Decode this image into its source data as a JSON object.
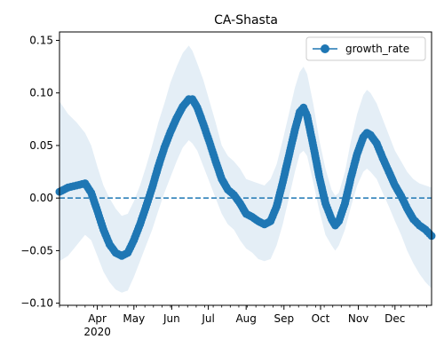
{
  "chart_data": {
    "type": "line",
    "title": "CA-Shasta",
    "xlabel": "",
    "ylabel": "",
    "x_start": "2020-03-01",
    "x_end": "2020-12-31",
    "xlim": [
      "2020-03-01",
      "2020-12-31"
    ],
    "ylim": [
      -0.102,
      0.158
    ],
    "y_ticks": [
      -0.1,
      -0.05,
      0.0,
      0.05,
      0.1,
      0.15
    ],
    "y_tick_labels": [
      "−0.10",
      "−0.05",
      "0.00",
      "0.05",
      "0.10",
      "0.15"
    ],
    "x_ticks": [
      {
        "date": "2020-04-01",
        "label": "Apr"
      },
      {
        "date": "2020-05-01",
        "label": "May"
      },
      {
        "date": "2020-06-01",
        "label": "Jun"
      },
      {
        "date": "2020-07-01",
        "label": "Jul"
      },
      {
        "date": "2020-08-01",
        "label": "Aug"
      },
      {
        "date": "2020-09-01",
        "label": "Sep"
      },
      {
        "date": "2020-10-01",
        "label": "Oct"
      },
      {
        "date": "2020-11-01",
        "label": "Nov"
      },
      {
        "date": "2020-12-01",
        "label": "Dec"
      }
    ],
    "x_year_label": "2020",
    "grid": false,
    "legend_position": "top-right",
    "reference_line": {
      "y": 0,
      "style": "dashed",
      "color": "#1f77b4"
    },
    "series": [
      {
        "name": "growth_rate",
        "color": "#1f77b4",
        "band_color": "#1f77b4",
        "points": [
          [
            "2020-03-01",
            0.006,
            -0.06,
            0.092
          ],
          [
            "2020-03-08",
            0.01,
            -0.055,
            0.08
          ],
          [
            "2020-03-15",
            0.012,
            -0.045,
            0.072
          ],
          [
            "2020-03-22",
            0.014,
            -0.035,
            0.062
          ],
          [
            "2020-03-27",
            0.005,
            -0.04,
            0.05
          ],
          [
            "2020-04-01",
            -0.012,
            -0.055,
            0.03
          ],
          [
            "2020-04-06",
            -0.03,
            -0.07,
            0.012
          ],
          [
            "2020-04-11",
            -0.044,
            -0.08,
            0.0
          ],
          [
            "2020-04-16",
            -0.052,
            -0.087,
            -0.01
          ],
          [
            "2020-04-21",
            -0.055,
            -0.09,
            -0.017
          ],
          [
            "2020-04-26",
            -0.052,
            -0.088,
            -0.015
          ],
          [
            "2020-05-01",
            -0.04,
            -0.075,
            -0.003
          ],
          [
            "2020-05-06",
            -0.025,
            -0.06,
            0.012
          ],
          [
            "2020-05-11",
            -0.008,
            -0.045,
            0.03
          ],
          [
            "2020-05-16",
            0.01,
            -0.03,
            0.05
          ],
          [
            "2020-05-21",
            0.03,
            -0.012,
            0.072
          ],
          [
            "2020-05-26",
            0.048,
            0.005,
            0.09
          ],
          [
            "2020-05-31",
            0.063,
            0.02,
            0.11
          ],
          [
            "2020-06-05",
            0.076,
            0.035,
            0.125
          ],
          [
            "2020-06-10",
            0.087,
            0.048,
            0.138
          ],
          [
            "2020-06-15",
            0.094,
            0.055,
            0.145
          ],
          [
            "2020-06-18",
            0.094,
            0.052,
            0.14
          ],
          [
            "2020-06-22",
            0.086,
            0.045,
            0.128
          ],
          [
            "2020-06-27",
            0.07,
            0.03,
            0.112
          ],
          [
            "2020-07-02",
            0.053,
            0.015,
            0.092
          ],
          [
            "2020-07-07",
            0.035,
            0.0,
            0.072
          ],
          [
            "2020-07-12",
            0.018,
            -0.015,
            0.05
          ],
          [
            "2020-07-17",
            0.008,
            -0.025,
            0.04
          ],
          [
            "2020-07-22",
            0.003,
            -0.03,
            0.035
          ],
          [
            "2020-07-27",
            -0.005,
            -0.04,
            0.028
          ],
          [
            "2020-08-01",
            -0.015,
            -0.048,
            0.018
          ],
          [
            "2020-08-06",
            -0.018,
            -0.052,
            0.016
          ],
          [
            "2020-08-11",
            -0.022,
            -0.058,
            0.014
          ],
          [
            "2020-08-16",
            -0.025,
            -0.06,
            0.012
          ],
          [
            "2020-08-21",
            -0.022,
            -0.058,
            0.018
          ],
          [
            "2020-08-26",
            -0.008,
            -0.045,
            0.032
          ],
          [
            "2020-08-31",
            0.015,
            -0.025,
            0.055
          ],
          [
            "2020-09-05",
            0.04,
            0.0,
            0.08
          ],
          [
            "2020-09-10",
            0.065,
            0.025,
            0.105
          ],
          [
            "2020-09-14",
            0.082,
            0.042,
            0.12
          ],
          [
            "2020-09-17",
            0.086,
            0.045,
            0.125
          ],
          [
            "2020-09-20",
            0.078,
            0.04,
            0.118
          ],
          [
            "2020-09-25",
            0.05,
            0.015,
            0.09
          ],
          [
            "2020-09-30",
            0.02,
            -0.012,
            0.055
          ],
          [
            "2020-10-05",
            -0.005,
            -0.035,
            0.028
          ],
          [
            "2020-10-10",
            -0.02,
            -0.045,
            0.008
          ],
          [
            "2020-10-13",
            -0.026,
            -0.05,
            0.002
          ],
          [
            "2020-10-16",
            -0.022,
            -0.045,
            0.005
          ],
          [
            "2020-10-21",
            -0.005,
            -0.03,
            0.025
          ],
          [
            "2020-10-26",
            0.02,
            -0.008,
            0.055
          ],
          [
            "2020-10-31",
            0.042,
            0.012,
            0.08
          ],
          [
            "2020-11-05",
            0.058,
            0.025,
            0.098
          ],
          [
            "2020-11-08",
            0.062,
            0.028,
            0.103
          ],
          [
            "2020-11-11",
            0.06,
            0.025,
            0.1
          ],
          [
            "2020-11-16",
            0.052,
            0.018,
            0.09
          ],
          [
            "2020-11-21",
            0.038,
            0.005,
            0.075
          ],
          [
            "2020-11-26",
            0.025,
            -0.008,
            0.06
          ],
          [
            "2020-12-01",
            0.012,
            -0.022,
            0.045
          ],
          [
            "2020-12-06",
            0.002,
            -0.035,
            0.035
          ],
          [
            "2020-12-11",
            -0.01,
            -0.05,
            0.025
          ],
          [
            "2020-12-16",
            -0.02,
            -0.062,
            0.018
          ],
          [
            "2020-12-21",
            -0.026,
            -0.072,
            0.014
          ],
          [
            "2020-12-26",
            -0.03,
            -0.08,
            0.012
          ],
          [
            "2020-12-31",
            -0.036,
            -0.086,
            0.01
          ]
        ]
      }
    ]
  }
}
